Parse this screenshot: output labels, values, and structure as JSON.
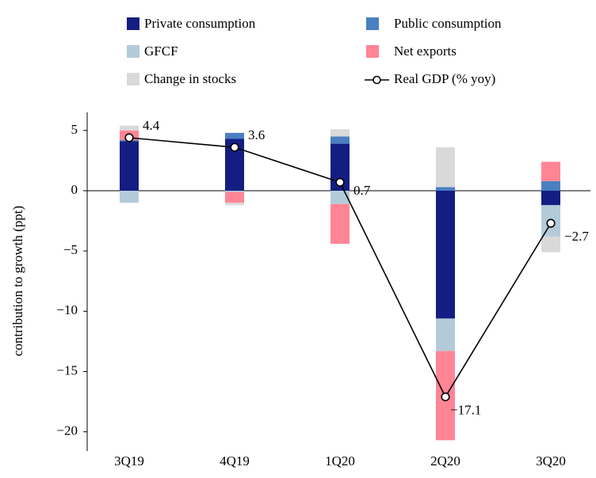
{
  "chart_data": {
    "type": "bar",
    "stacked": true,
    "y_label": "contribution to growth (ppt)",
    "categories": [
      "3Q19",
      "4Q19",
      "1Q20",
      "2Q20",
      "3Q20"
    ],
    "series": [
      {
        "name": "Private consumption",
        "color": "#141e82",
        "values": [
          4.1,
          4.3,
          3.9,
          -10.6,
          -1.2
        ]
      },
      {
        "name": "Public consumption",
        "color": "#4a7fc1",
        "values": [
          0.1,
          0.5,
          0.6,
          0.3,
          0.8
        ]
      },
      {
        "name": "GFCF",
        "color": "#b3cbd9",
        "values": [
          -1.0,
          -0.1,
          -1.1,
          -2.7,
          -2.6
        ]
      },
      {
        "name": "Net exports",
        "color": "#ff8595",
        "values": [
          0.8,
          -0.9,
          -3.3,
          -7.4,
          1.6
        ]
      },
      {
        "name": "Change in stocks",
        "color": "#d9d9d9",
        "values": [
          0.4,
          -0.2,
          0.6,
          3.3,
          -1.3
        ]
      },
      {
        "name": "Real GDP (% yoy)",
        "type": "line",
        "color": "#000000",
        "values": [
          4.4,
          3.6,
          0.7,
          -17.1,
          -2.7
        ],
        "value_labels": [
          "4.4",
          "3.6",
          "0.7",
          "−17.1",
          "−2.7"
        ]
      }
    ],
    "ylim": [
      -21.6,
      6.5
    ],
    "yticks": [
      5,
      0,
      {
        "value": -5,
        "label": "−5"
      },
      {
        "value": -10,
        "label": "−10"
      },
      {
        "value": -15,
        "label": "−15"
      },
      {
        "value": -20,
        "label": "−20"
      }
    ],
    "grid": false
  }
}
